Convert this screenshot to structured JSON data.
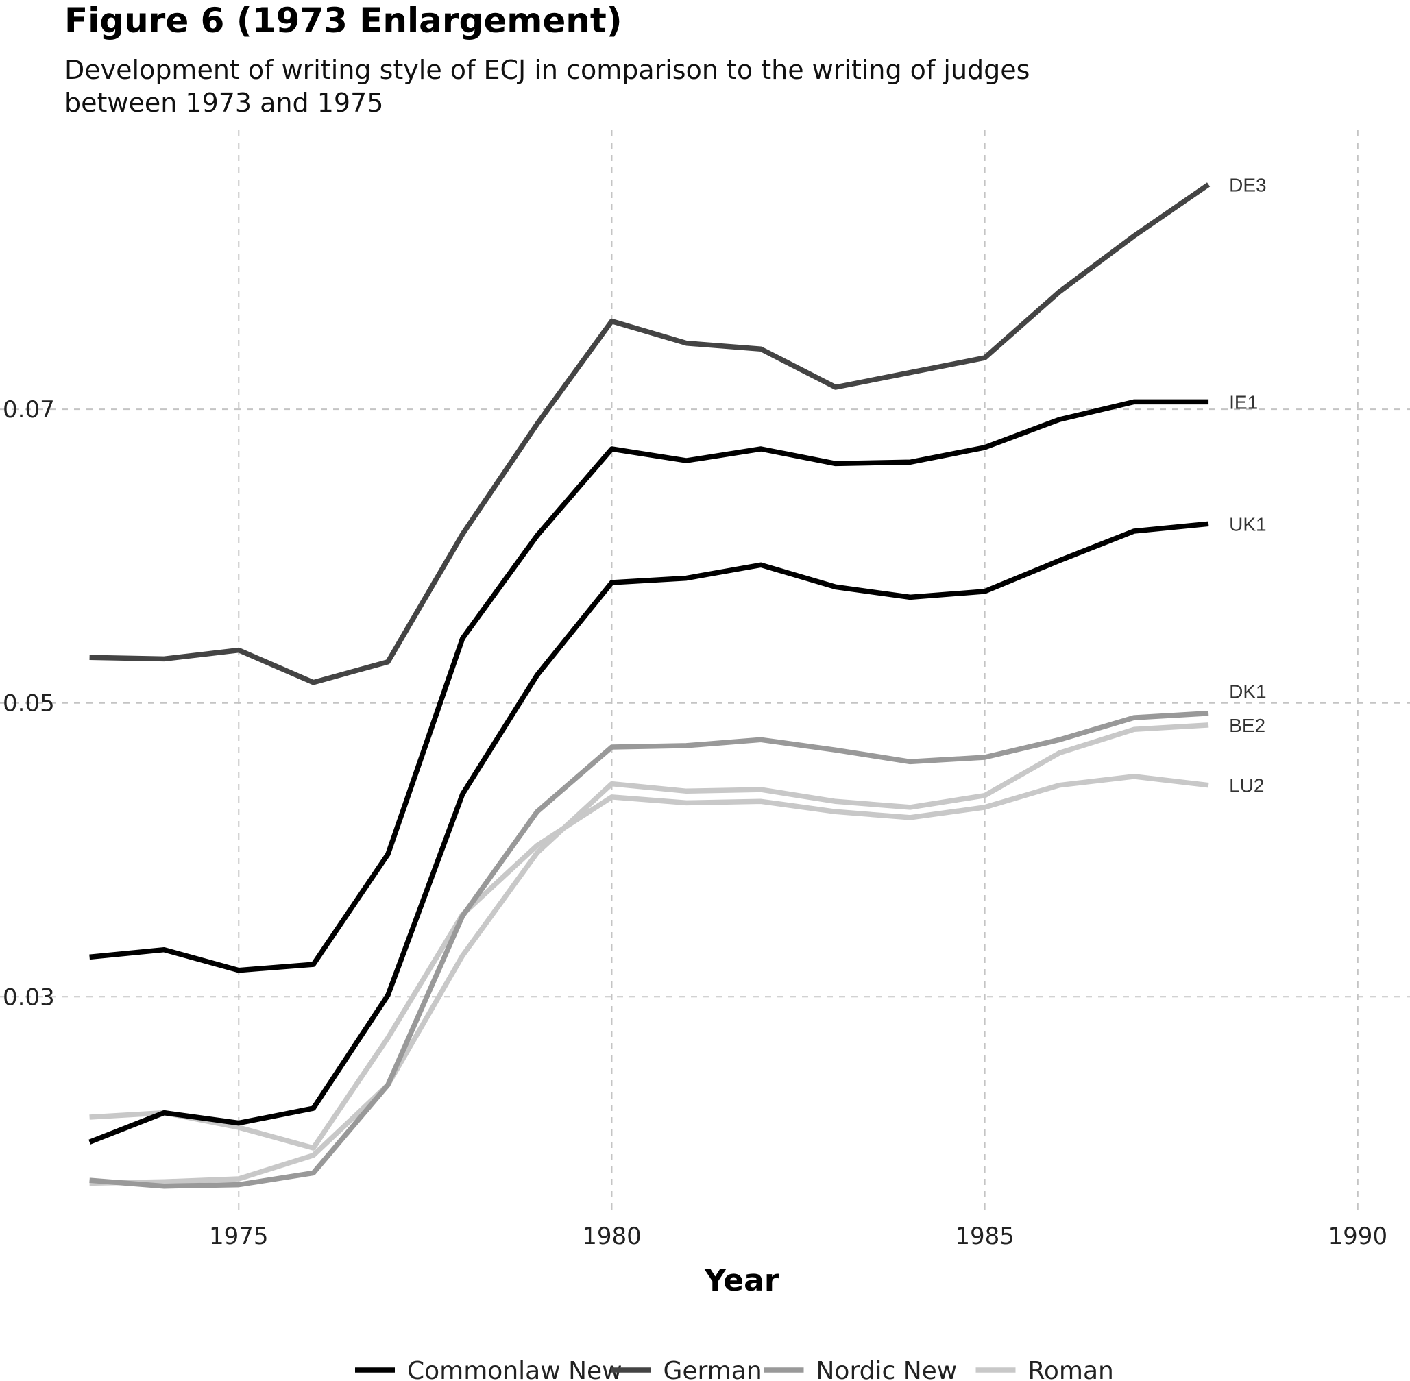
{
  "chart_data": {
    "type": "line",
    "title": "Figure 6 (1973 Enlargement)",
    "subtitle_lines": [
      "Development of writing style of ECJ in comparison to the writing of judges",
      "between 1973 and 1975"
    ],
    "xlabel": "Year",
    "ylabel": "",
    "xlim": [
      1971.8,
      1990.7
    ],
    "ylim": [
      0.0155,
      0.089
    ],
    "x_ticks": [
      1975,
      1980,
      1985,
      1990
    ],
    "x_tick_labels": [
      "1975",
      "1980",
      "1985",
      "1990"
    ],
    "y_ticks": [
      0.03,
      0.05,
      0.07
    ],
    "y_tick_labels": [
      "0.03",
      "0.05",
      "0.07"
    ],
    "grid": true,
    "legend_position": "bottom",
    "legend": [
      {
        "name": "Commonlaw New",
        "color": "#000000"
      },
      {
        "name": "German",
        "color": "#444444"
      },
      {
        "name": "Nordic New",
        "color": "#999999"
      },
      {
        "name": "Roman",
        "color": "#c8c8c8"
      }
    ],
    "x": [
      1973,
      1974,
      1975,
      1976,
      1977,
      1978,
      1979,
      1980,
      1981,
      1982,
      1983,
      1984,
      1985,
      1986,
      1987,
      1988
    ],
    "series": [
      {
        "label": "DE3",
        "group": "German",
        "color": "#444444",
        "values": [
          0.0531,
          0.053,
          0.0536,
          0.0514,
          0.0528,
          0.0615,
          0.069,
          0.076,
          0.0745,
          0.0741,
          0.0715,
          0.0725,
          0.0735,
          0.078,
          0.0818,
          0.0853
        ]
      },
      {
        "label": "IE1",
        "group": "Commonlaw New",
        "color": "#000000",
        "values": [
          0.0327,
          0.0332,
          0.0318,
          0.0322,
          0.0397,
          0.0544,
          0.0614,
          0.0673,
          0.0665,
          0.0673,
          0.0663,
          0.0664,
          0.0674,
          0.0693,
          0.0705,
          0.0705
        ]
      },
      {
        "label": "UK1",
        "group": "Commonlaw New",
        "color": "#000000",
        "values": [
          0.0201,
          0.0221,
          0.0214,
          0.0224,
          0.0301,
          0.0438,
          0.0519,
          0.0582,
          0.0585,
          0.0594,
          0.0579,
          0.0572,
          0.0576,
          0.0597,
          0.0617,
          0.0622
        ]
      },
      {
        "label": "DK1",
        "group": "Nordic New",
        "color": "#999999",
        "values": [
          0.0175,
          0.0171,
          0.0172,
          0.018,
          0.024,
          0.0355,
          0.0426,
          0.047,
          0.0471,
          0.0475,
          0.0468,
          0.046,
          0.0463,
          0.0475,
          0.049,
          0.0493
        ]
      },
      {
        "label": "BE2",
        "group": "Roman",
        "color": "#c8c8c8",
        "values": [
          0.0173,
          0.0174,
          0.0176,
          0.0192,
          0.024,
          0.0328,
          0.0398,
          0.0445,
          0.044,
          0.0441,
          0.0433,
          0.0429,
          0.0437,
          0.0466,
          0.0482,
          0.0485
        ]
      },
      {
        "label": "LU2",
        "group": "Roman",
        "color": "#c8c8c8",
        "values": [
          0.0218,
          0.0221,
          0.0211,
          0.0197,
          0.0272,
          0.0356,
          0.0403,
          0.0436,
          0.0432,
          0.0433,
          0.0426,
          0.0422,
          0.0429,
          0.0444,
          0.045,
          0.0444
        ]
      }
    ]
  }
}
